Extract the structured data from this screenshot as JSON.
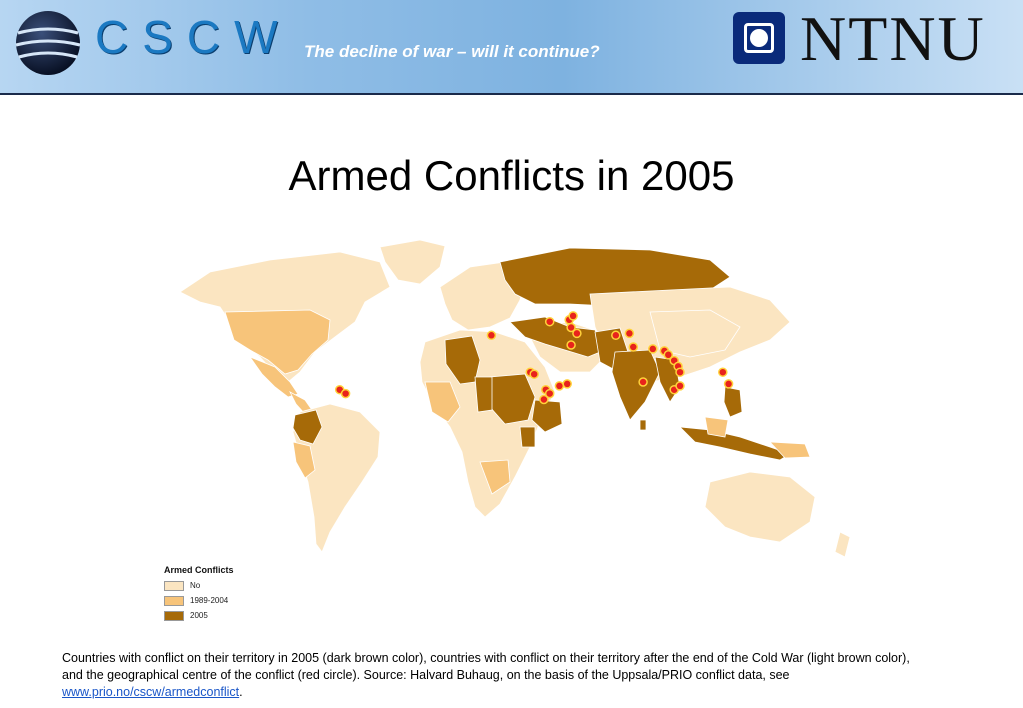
{
  "header": {
    "org_name": "CSCW",
    "tagline": "The decline of war – will it continue?",
    "university_name": "NTNU"
  },
  "title": "Armed Conflicts in 2005",
  "legend": {
    "title": "Armed Conflicts",
    "items": [
      {
        "label": "No",
        "color": "#fbe5c1"
      },
      {
        "label": "1989-2004",
        "color": "#f7c47a"
      },
      {
        "label": "2005",
        "color": "#a66a08"
      }
    ]
  },
  "colors": {
    "no_conflict": "#fbe5c1",
    "conflict_1989_2004": "#f7c47a",
    "conflict_2005": "#a66a08",
    "conflict_centre": "#e8231c"
  },
  "conflict_centres": [
    {
      "lon": -75,
      "lat": 4
    },
    {
      "lon": -72,
      "lat": 2
    },
    {
      "lon": 3,
      "lat": 32
    },
    {
      "lon": 23,
      "lat": 13
    },
    {
      "lon": 25,
      "lat": 12
    },
    {
      "lon": 31,
      "lat": 4
    },
    {
      "lon": 30,
      "lat": -1
    },
    {
      "lon": 33,
      "lat": 2
    },
    {
      "lon": 38,
      "lat": 6
    },
    {
      "lon": 42,
      "lat": 7
    },
    {
      "lon": 33,
      "lat": 39
    },
    {
      "lon": 43,
      "lat": 40
    },
    {
      "lon": 45,
      "lat": 42
    },
    {
      "lon": 44,
      "lat": 36
    },
    {
      "lon": 47,
      "lat": 33
    },
    {
      "lon": 44,
      "lat": 27
    },
    {
      "lon": 67,
      "lat": 32
    },
    {
      "lon": 74,
      "lat": 33
    },
    {
      "lon": 76,
      "lat": 26
    },
    {
      "lon": 86,
      "lat": 25
    },
    {
      "lon": 92,
      "lat": 24
    },
    {
      "lon": 94,
      "lat": 22
    },
    {
      "lon": 97,
      "lat": 19
    },
    {
      "lon": 99,
      "lat": 16
    },
    {
      "lon": 100,
      "lat": 13
    },
    {
      "lon": 81,
      "lat": 8
    },
    {
      "lon": 97,
      "lat": 4
    },
    {
      "lon": 100,
      "lat": 6
    },
    {
      "lon": 122,
      "lat": 13
    },
    {
      "lon": 125,
      "lat": 7
    }
  ],
  "caption": {
    "text": "Countries with conflict on their territory in 2005 (dark brown color), countries with conflict on their territory after the end of the Cold War (light brown color), and the geographical centre of the conflict (red circle). Source: Halvard Buhaug, on the basis of the Uppsala/PRIO conflict data, see ",
    "link_text": "www.prio.no/cscw/armedconflict",
    "suffix": "."
  }
}
